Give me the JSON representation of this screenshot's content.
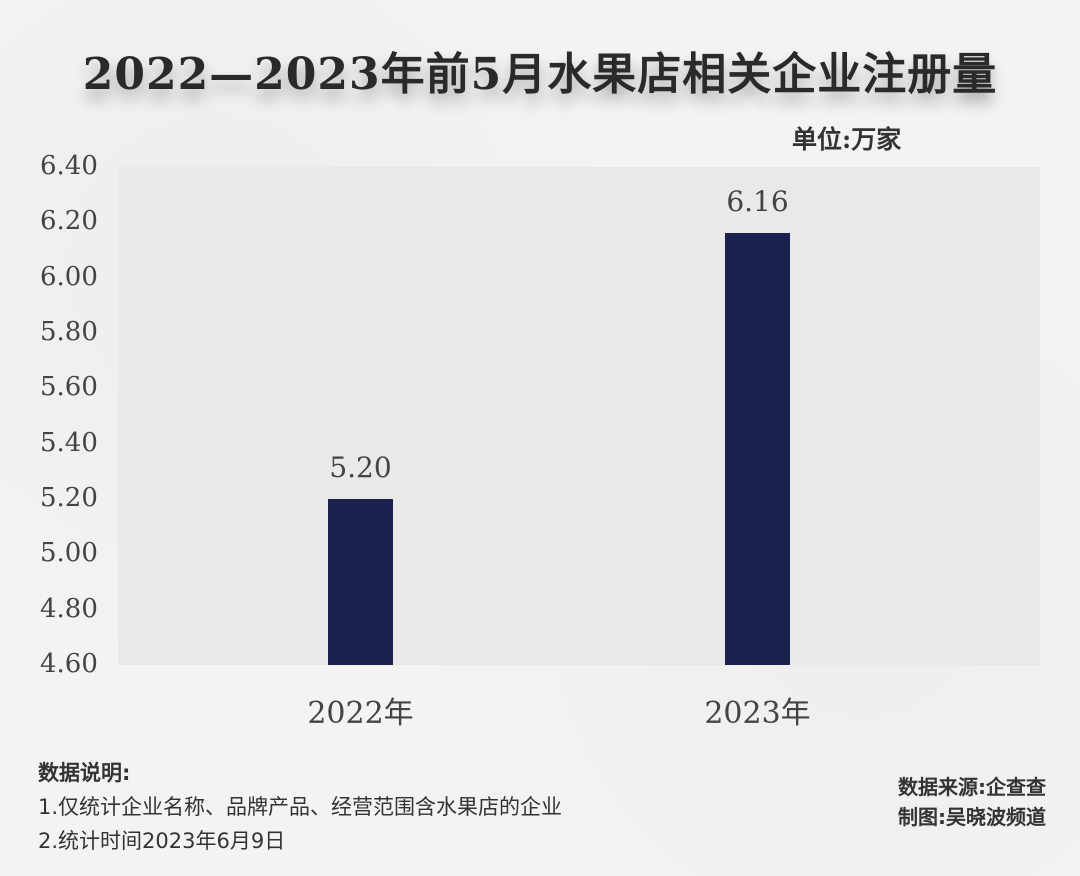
{
  "header": {
    "title": "2022—2023年前5月水果店相关企业注册量",
    "unit": "单位:万家"
  },
  "colors": {
    "bar": "#1a2350",
    "plot_background": "#e9e9e8",
    "page_background": "#f3f3f2"
  },
  "y_axis": {
    "ticks": [
      "6.40",
      "6.20",
      "6.00",
      "5.80",
      "5.60",
      "5.40",
      "5.20",
      "5.00",
      "4.80",
      "4.60"
    ]
  },
  "x_axis": {
    "labels": [
      "2022年",
      "2023年"
    ]
  },
  "bars": [
    {
      "category": "2022年",
      "value_label": "5.20"
    },
    {
      "category": "2023年",
      "value_label": "6.16"
    }
  ],
  "notes": {
    "heading": "数据说明:",
    "items": [
      "1.仅统计企业名称、品牌产品、经营范围含水果店的企业",
      "2.统计时间2023年6月9日"
    ]
  },
  "credits": {
    "source": "数据来源:企查查",
    "author": "制图:吴晓波频道"
  },
  "chart_data": {
    "type": "bar",
    "title": "2022—2023年前5月水果店相关企业注册量",
    "categories": [
      "2022年",
      "2023年"
    ],
    "values": [
      5.2,
      6.16
    ],
    "xlabel": "",
    "ylabel": "单位:万家",
    "ylim": [
      4.6,
      6.4
    ],
    "yticks": [
      4.6,
      4.8,
      5.0,
      5.2,
      5.4,
      5.6,
      5.8,
      6.0,
      6.2,
      6.4
    ],
    "grid": false,
    "legend": null,
    "annotations": [
      "5.20",
      "6.16"
    ],
    "footnotes": [
      "数据说明:",
      "1.仅统计企业名称、品牌产品、经营范围含水果店的企业",
      "2.统计时间2023年6月9日",
      "数据来源:企查查",
      "制图:吴晓波频道"
    ]
  }
}
